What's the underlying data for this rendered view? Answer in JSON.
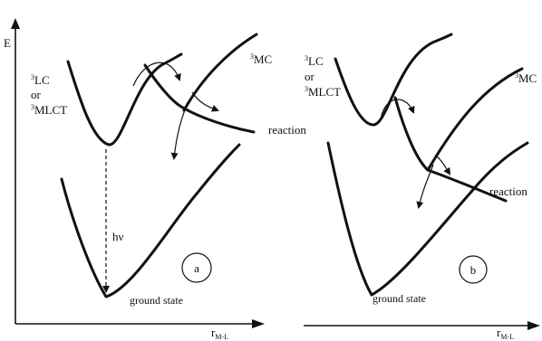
{
  "axes": {
    "y_label": "E",
    "x_label_main": "r",
    "x_label_sub": "M-L"
  },
  "panel_a": {
    "state_lower": {
      "sup": "3",
      "text": "LC"
    },
    "state_or": "or",
    "state_upper": {
      "sup": "3",
      "text": "MLCT"
    },
    "mc": {
      "sup": "3",
      "text": "MC"
    },
    "reaction": "reaction",
    "hv": "hν",
    "ground": "ground state",
    "label": "a"
  },
  "panel_b": {
    "state_lower": {
      "sup": "3",
      "text": "LC"
    },
    "state_or": "or",
    "state_upper": {
      "sup": "3",
      "text": "MLCT"
    },
    "mc": {
      "sup": "3",
      "text": "MC"
    },
    "reaction": "reaction",
    "ground": "ground state",
    "label": "b"
  }
}
